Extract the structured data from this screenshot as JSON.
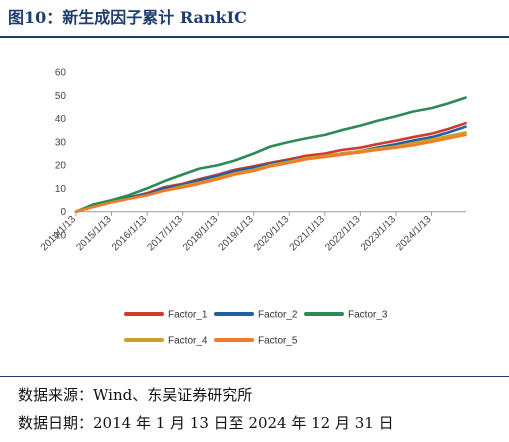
{
  "header": {
    "title": "图10：新生成因子累计 RankIC"
  },
  "footer": {
    "source": "数据来源：Wind、东吴证券研究所",
    "date_range": "数据日期：2014 年 1 月 13 日至 2024 年 12 月 31 日"
  },
  "chart_data": {
    "type": "line",
    "title": "",
    "xlabel": "",
    "ylabel": "",
    "ylim": [
      -10,
      60
    ],
    "yticks": [
      -10,
      0,
      10,
      20,
      30,
      40,
      50,
      60
    ],
    "ytick_labels": [
      "-10",
      "0",
      "10",
      "20",
      "30",
      "40",
      "50",
      "60"
    ],
    "xlim": [
      2014.03,
      2025.0
    ],
    "xtick_positions": [
      2014.03,
      2015.03,
      2016.03,
      2017.03,
      2018.03,
      2019.03,
      2020.03,
      2021.03,
      2022.03,
      2023.03,
      2024.03
    ],
    "xtick_labels": [
      "2014/1/13",
      "2015/1/13",
      "2016/1/13",
      "2017/1/13",
      "2018/1/13",
      "2019/1/13",
      "2020/1/13",
      "2021/1/13",
      "2022/1/13",
      "2023/1/13",
      "2024/1/13"
    ],
    "grid": false,
    "legend_position": "bottom",
    "x": [
      2014.03,
      2014.5,
      2015.03,
      2015.5,
      2016.03,
      2016.5,
      2017.03,
      2017.5,
      2018.03,
      2018.5,
      2019.03,
      2019.5,
      2020.03,
      2020.5,
      2021.03,
      2021.5,
      2022.03,
      2022.5,
      2023.03,
      2023.5,
      2024.03,
      2024.5,
      2024.99
    ],
    "series": [
      {
        "name": "Factor_1",
        "color": "#d03a2f",
        "values": [
          0,
          2.5,
          4.5,
          6,
          8,
          10.5,
          12,
          14,
          16,
          18,
          19.5,
          21,
          22.5,
          24,
          25,
          26.5,
          27.5,
          29,
          30.5,
          32,
          33.5,
          35.5,
          38
        ]
      },
      {
        "name": "Factor_2",
        "color": "#1f5fa6",
        "values": [
          0,
          2.5,
          4.5,
          6,
          7.5,
          10,
          11.5,
          13.5,
          15.5,
          17.5,
          19,
          20.5,
          22,
          23,
          24,
          25,
          26,
          27.5,
          29,
          30.5,
          32,
          34,
          36.5
        ]
      },
      {
        "name": "Factor_3",
        "color": "#2b8a57",
        "values": [
          0,
          3,
          5,
          7,
          10,
          13,
          16,
          18.5,
          20,
          22,
          25,
          28,
          30,
          31.5,
          33,
          35,
          37,
          39,
          41,
          43,
          44.5,
          46.5,
          49
        ]
      },
      {
        "name": "Factor_4",
        "color": "#c9a227",
        "values": [
          0,
          2,
          4,
          5.5,
          7,
          9,
          11,
          12.5,
          14.5,
          16.5,
          18,
          20,
          21.5,
          23,
          24,
          25,
          26,
          27,
          28,
          29.5,
          31,
          32.5,
          34
        ]
      },
      {
        "name": "Factor_5",
        "color": "#f07c2a",
        "values": [
          0,
          2,
          4,
          5.5,
          7,
          9,
          10.5,
          12,
          14,
          16,
          17.5,
          19.5,
          21,
          22.5,
          23.5,
          24.5,
          25.5,
          26.5,
          27.5,
          28.5,
          30,
          31.5,
          33
        ]
      }
    ]
  }
}
